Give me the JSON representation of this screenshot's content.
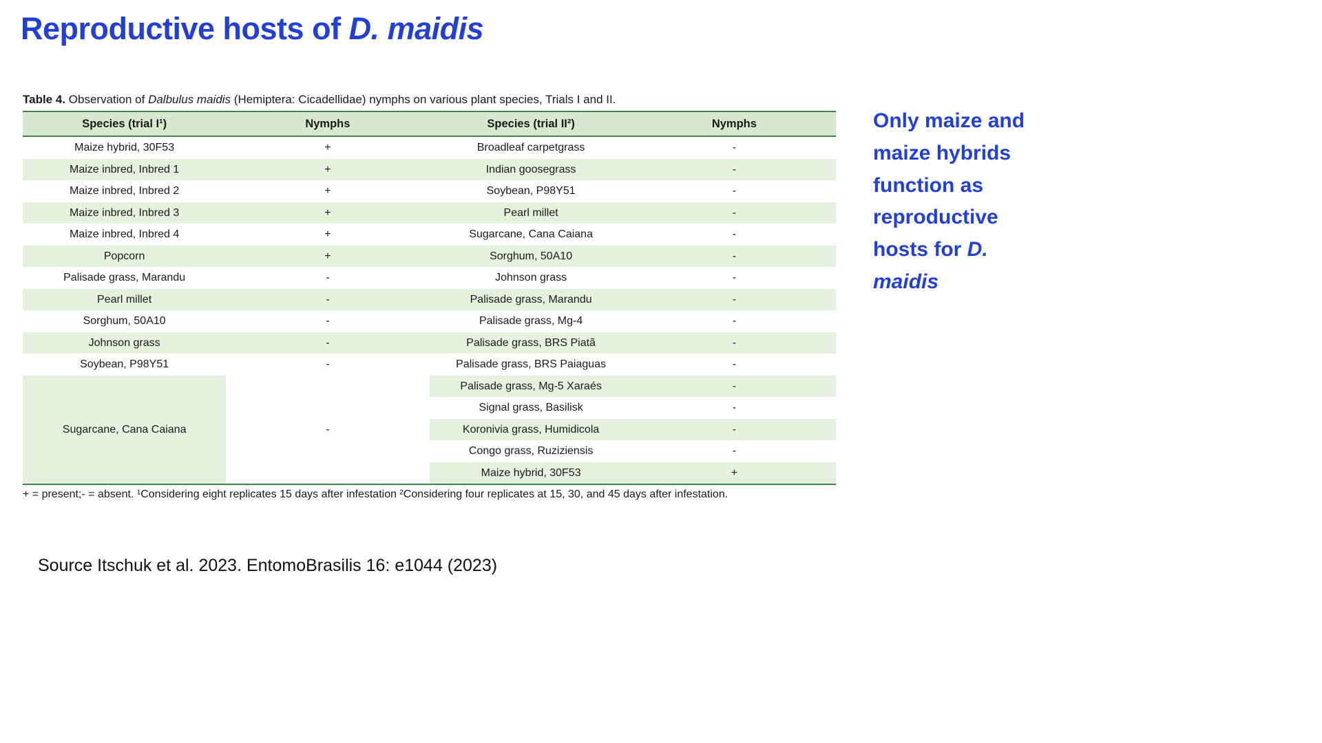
{
  "colors": {
    "blue": "#2440d4",
    "gborder": "#3f8243",
    "gheader": "#d8e7d0",
    "gstripe": "#e5f0de"
  },
  "title": {
    "text": "Reproductive hosts of ",
    "italic": "D. maidis"
  },
  "caption": {
    "label": "Table 4.",
    "before_italic": " Observation of ",
    "italic": "Dalbulus maidis",
    "after_italic": " (Hemiptera: Cicadellidae) nymphs on various plant species, Trials I and II."
  },
  "table": {
    "headers": [
      "Species (trial I¹)",
      "Nymphs",
      "Species (trial II²)",
      "Nymphs"
    ],
    "rows": [
      {
        "t1": "Maize hybrid, 30F53",
        "n1": "+",
        "t2": "Broadleaf carpetgrass",
        "n2": "-"
      },
      {
        "t1": "Maize inbred, Inbred 1",
        "n1": "+",
        "t2": "Indian goosegrass",
        "n2": "-"
      },
      {
        "t1": "Maize inbred, Inbred 2",
        "n1": "+",
        "t2": "Soybean, P98Y51",
        "n2": "-"
      },
      {
        "t1": "Maize inbred, Inbred 3",
        "n1": "+",
        "t2": "Pearl millet",
        "n2": "-"
      },
      {
        "t1": "Maize inbred, Inbred 4",
        "n1": "+",
        "t2": "Sugarcane, Cana Caiana",
        "n2": "-"
      },
      {
        "t1": "Popcorn",
        "n1": "+",
        "t2": "Sorghum, 50A10",
        "n2": "-"
      },
      {
        "t1": "Palisade grass, Marandu",
        "n1": "-",
        "t2": "Johnson grass",
        "n2": "-"
      },
      {
        "t1": "Pearl millet",
        "n1": "-",
        "t2": "Palisade grass, Marandu",
        "n2": "-"
      },
      {
        "t1": "Sorghum, 50A10",
        "n1": "-",
        "t2": "Palisade grass, Mg-4",
        "n2": "-"
      },
      {
        "t1": "Johnson grass",
        "n1": "-",
        "t2": "Palisade grass, BRS Piatã",
        "n2": "-"
      },
      {
        "t1": "Soybean, P98Y51",
        "n1": "-",
        "t2": "Palisade grass, BRS Paiaguas",
        "n2": "-"
      },
      {
        "t1": null,
        "n1": null,
        "t2": "Palisade grass, Mg-5 Xaraés",
        "n2": "-"
      },
      {
        "t1": null,
        "n1": null,
        "t2": "Signal grass, Basilisk",
        "n2": "-"
      },
      {
        "t1": null,
        "n1": null,
        "t2": "Koronivia grass, Humidicola",
        "n2": "-"
      },
      {
        "t1": null,
        "n1": null,
        "t2": "Congo grass, Ruziziensis",
        "n2": "-"
      },
      {
        "t1": null,
        "n1": null,
        "t2": "Maize hybrid, 30F53",
        "n2": "+"
      }
    ],
    "merged": {
      "row_index": 11,
      "span": 5,
      "species": "Sugarcane, Cana Caiana",
      "nymphs": "-"
    }
  },
  "footnote": "+ = present;- = absent. ¹Considering eight replicates 15 days after infestation ²Considering four replicates at 15, 30, and 45 days after infestation.",
  "annotation": {
    "text": "Only maize and maize hybrids function as reproductive hosts for ",
    "italic": "D. maidis"
  },
  "source": "Source Itschuk et al. 2023. EntomoBrasilis 16: e1044 (2023)"
}
